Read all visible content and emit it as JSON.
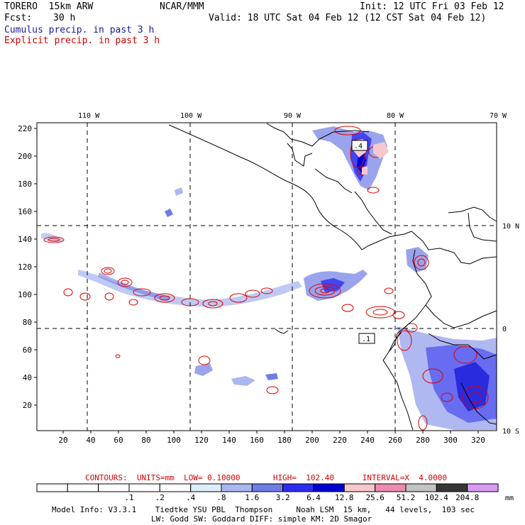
{
  "header": {
    "model": "TORERO  15km ARW",
    "org": "NCAR/MMM",
    "init": "Init: 12 UTC Fri 03 Feb 12",
    "fcst_label": "Fcst:",
    "fcst_value": "30 h",
    "valid": "Valid: 18 UTC Sat 04 Feb 12 (12 CST Sat 04 Feb 12)",
    "field1": "Cumulus precip. in past 3 h",
    "field2": "Explicit precip. in past 3 h"
  },
  "map": {
    "lon_labels": [
      "110 W",
      "100 W",
      "90 W",
      "80 W",
      "70 W"
    ],
    "lat_labels": [
      "10 N",
      "0",
      "10 S"
    ],
    "y_ticks": [
      "220",
      "200",
      "180",
      "160",
      "140",
      "120",
      "100",
      "80",
      "60",
      "40",
      "20"
    ],
    "x_ticks": [
      "20",
      "40",
      "60",
      "80",
      "100",
      "120",
      "140",
      "160",
      "180",
      "200",
      "220",
      "240",
      "260",
      "280",
      "300",
      "320"
    ],
    "box_labels": [
      ".4",
      ".1"
    ]
  },
  "contours": {
    "text": "CONTOURS:  UNITS=mm  LOW= 0.10000       HIGH=  102.40      INTERVAL=X  4.0000"
  },
  "colorbar": {
    "colors": [
      "#ffffff",
      "#ffffff",
      "#ffffff",
      "#ffffff",
      "#ffffff",
      "#dceefa",
      "#a9b8f0",
      "#6e7de6",
      "#2d2df0",
      "#0000d2",
      "#f5c8cd",
      "#eb8caf",
      "#c3c3c3",
      "#373737",
      "#d79bf0"
    ],
    "labels": [
      ".1",
      ".2",
      ".4",
      ".8",
      "1.6",
      "3.2",
      "6.4",
      "12.8",
      "25.6",
      "51.2",
      "102.4",
      "204.8"
    ],
    "unit": "mm"
  },
  "model_info": {
    "line1": "Model Info: V3.3.1    Tiedtke YSU PBL  Thompson     Noah LSM  15 km,   44 levels,  103 sec",
    "line2": "LW: Godd SW: Goddard DIFF: simple KM: 2D Smagor"
  }
}
